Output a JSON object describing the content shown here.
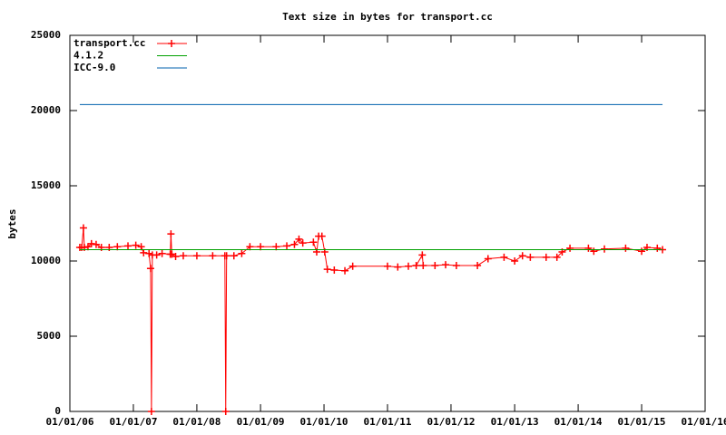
{
  "chart_data": {
    "type": "line",
    "title": "Text size in bytes for transport.cc",
    "ylabel": "bytes",
    "xlim": [
      "2006-01-01",
      "2016-01-01"
    ],
    "xticks": [
      {
        "value": "2006-01-01",
        "label": "01/01/06"
      },
      {
        "value": "2007-01-01",
        "label": "01/01/07"
      },
      {
        "value": "2008-01-01",
        "label": "01/01/08"
      },
      {
        "value": "2009-01-01",
        "label": "01/01/09"
      },
      {
        "value": "2010-01-01",
        "label": "01/01/10"
      },
      {
        "value": "2011-01-01",
        "label": "01/01/11"
      },
      {
        "value": "2012-01-01",
        "label": "01/01/12"
      },
      {
        "value": "2013-01-01",
        "label": "01/01/13"
      },
      {
        "value": "2014-01-01",
        "label": "01/01/14"
      },
      {
        "value": "2015-01-01",
        "label": "01/01/15"
      },
      {
        "value": "2016-01-01",
        "label": "01/01/16"
      }
    ],
    "ylim": [
      0,
      25000
    ],
    "yticks": [
      0,
      5000,
      10000,
      15000,
      20000,
      25000
    ],
    "grid": false,
    "legend": "top-left",
    "series": [
      {
        "name": "transport.cc",
        "color": "#ff0000",
        "markers": true,
        "x": [
          "2006-02-27",
          "2006-03-10",
          "2006-03-20",
          "2006-03-25",
          "2006-04-15",
          "2006-05-05",
          "2006-06-01",
          "2006-07-01",
          "2006-08-15",
          "2006-10-01",
          "2006-12-01",
          "2007-01-15",
          "2007-02-15",
          "2007-03-01",
          "2007-04-01",
          "2007-04-10",
          "2007-04-15",
          "2007-04-20",
          "2007-05-15",
          "2007-06-15",
          "2007-08-01",
          "2007-08-05",
          "2007-08-10",
          "2007-09-01",
          "2007-10-15",
          "2008-01-01",
          "2008-04-01",
          "2008-06-10",
          "2008-06-15",
          "2008-06-20",
          "2008-08-01",
          "2008-09-15",
          "2008-11-01",
          "2009-01-01",
          "2009-04-01",
          "2009-06-01",
          "2009-07-15",
          "2009-08-10",
          "2009-09-01",
          "2009-11-01",
          "2009-11-20",
          "2009-12-01",
          "2009-12-20",
          "2010-01-05",
          "2010-01-20",
          "2010-03-01",
          "2010-05-01",
          "2010-06-15",
          "2011-01-01",
          "2011-03-01",
          "2011-05-01",
          "2011-06-15",
          "2011-07-20",
          "2011-07-25",
          "2011-10-01",
          "2011-12-01",
          "2012-02-01",
          "2012-06-01",
          "2012-08-01",
          "2012-11-01",
          "2013-01-01",
          "2013-02-15",
          "2013-04-01",
          "2013-07-01",
          "2013-09-01",
          "2013-10-01",
          "2013-11-15",
          "2014-03-01",
          "2014-04-01",
          "2014-06-01",
          "2014-10-01",
          "2015-01-01",
          "2015-02-01",
          "2015-04-01",
          "2015-05-01"
        ],
        "values": [
          10900,
          10900,
          12200,
          10900,
          10950,
          11150,
          11100,
          10900,
          10900,
          10950,
          11000,
          11050,
          10950,
          10550,
          10500,
          9500,
          0,
          10400,
          10400,
          10500,
          10450,
          11800,
          10450,
          10300,
          10350,
          10350,
          10350,
          10350,
          0,
          10350,
          10350,
          10500,
          10950,
          10950,
          10950,
          11000,
          11100,
          11450,
          11200,
          11250,
          10600,
          11650,
          11650,
          10600,
          9450,
          9400,
          9350,
          9650,
          9650,
          9600,
          9650,
          9700,
          10400,
          9700,
          9700,
          9750,
          9700,
          9700,
          10150,
          10250,
          10000,
          10350,
          10250,
          10250,
          10250,
          10600,
          10850,
          10850,
          10650,
          10800,
          10850,
          10650,
          10900,
          10850,
          10750
        ]
      },
      {
        "name": "4.1.2",
        "color": "#00a000",
        "markers": false,
        "x": [
          "2006-02-27",
          "2015-05-01"
        ],
        "values": [
          10750,
          10750
        ]
      },
      {
        "name": "ICC-9.0",
        "color": "#0060ad",
        "markers": false,
        "x": [
          "2006-02-27",
          "2015-05-01"
        ],
        "values": [
          20400,
          20400
        ]
      }
    ]
  }
}
